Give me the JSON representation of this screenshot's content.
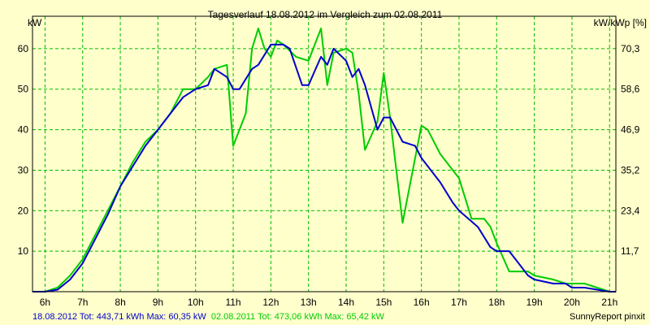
{
  "chart_data": {
    "type": "line",
    "title": "Tagesverlauf 18.08.2012 im Vergleich zum 02.08.2011",
    "ylabel_left": "kW",
    "ylabel_right": "kW/kWp [%]",
    "x_ticks": [
      "6h",
      "7h",
      "8h",
      "9h",
      "10h",
      "11h",
      "12h",
      "13h",
      "14h",
      "15h",
      "16h",
      "17h",
      "18h",
      "19h",
      "20h",
      "21h"
    ],
    "y_ticks_left": [
      "10",
      "20",
      "30",
      "40",
      "50",
      "60"
    ],
    "y_ticks_right": [
      "11,7",
      "23,4",
      "35,2",
      "46,9",
      "58,6",
      "70,3"
    ],
    "x_range_hours": [
      5.667,
      21.167
    ],
    "ylim": [
      0,
      68
    ],
    "grid": true,
    "series": [
      {
        "color": "#0000cc",
        "x": [
          5.667,
          6.0,
          6.333,
          6.667,
          7.0,
          7.333,
          7.667,
          8.0,
          8.333,
          8.667,
          9.0,
          9.333,
          9.667,
          10.0,
          10.333,
          10.5,
          10.833,
          11.0,
          11.167,
          11.5,
          11.667,
          12.0,
          12.333,
          12.5,
          12.833,
          13.0,
          13.333,
          13.5,
          13.667,
          14.0,
          14.167,
          14.333,
          14.5,
          14.833,
          15.0,
          15.167,
          15.5,
          15.833,
          16.0,
          16.5,
          16.833,
          17.0,
          17.5,
          17.833,
          18.0,
          18.333,
          18.5,
          18.833,
          19.0,
          19.5,
          19.833,
          20.0,
          20.333,
          20.667,
          21.0,
          21.167
        ],
        "values": [
          0,
          0,
          0.5,
          3,
          7,
          13,
          19,
          26,
          31,
          36,
          40,
          44,
          48,
          50,
          51,
          55,
          53,
          50,
          50,
          55,
          56,
          61,
          61,
          60,
          51,
          51,
          58,
          56,
          60,
          57,
          53,
          55,
          51,
          40,
          43,
          43,
          37,
          36,
          33,
          27,
          22,
          20,
          16,
          11,
          10,
          10,
          8,
          4,
          3,
          2,
          2,
          1,
          1,
          0.5,
          0,
          0
        ]
      },
      {
        "color": "#00cc00",
        "x": [
          5.667,
          6.0,
          6.333,
          6.667,
          7.0,
          7.333,
          7.667,
          8.0,
          8.333,
          8.667,
          9.0,
          9.333,
          9.667,
          10.0,
          10.333,
          10.5,
          10.833,
          11.0,
          11.333,
          11.5,
          11.667,
          11.833,
          12.0,
          12.167,
          12.333,
          12.667,
          13.0,
          13.333,
          13.5,
          13.667,
          14.0,
          14.167,
          14.333,
          14.5,
          14.833,
          15.0,
          15.167,
          15.5,
          15.667,
          16.0,
          16.167,
          16.5,
          16.833,
          17.0,
          17.333,
          17.667,
          17.833,
          18.0,
          18.333,
          18.5,
          18.833,
          19.0,
          19.5,
          19.833,
          20.0,
          20.333,
          20.667,
          21.0,
          21.167
        ],
        "values": [
          0,
          0,
          1,
          4,
          8,
          14,
          20,
          26,
          32,
          37,
          40,
          44,
          50,
          50,
          53,
          55,
          56,
          36,
          44,
          60,
          65,
          60,
          58,
          62,
          61,
          58,
          57,
          65,
          51,
          59,
          60,
          59,
          49,
          35,
          42,
          54,
          43,
          17,
          25,
          41,
          40,
          34,
          30,
          28,
          18,
          18,
          16,
          12,
          5,
          5,
          5,
          4,
          3,
          2,
          2,
          2,
          1,
          0,
          0
        ]
      }
    ],
    "footer": {
      "left": "18.08.2012 Tot: 443,71 kWh Max: 60,35 kW",
      "middle": "02.08.2011 Tot: 473,06 kWh Max: 65,42 kW",
      "right": "SunnyReport pinxit"
    }
  }
}
